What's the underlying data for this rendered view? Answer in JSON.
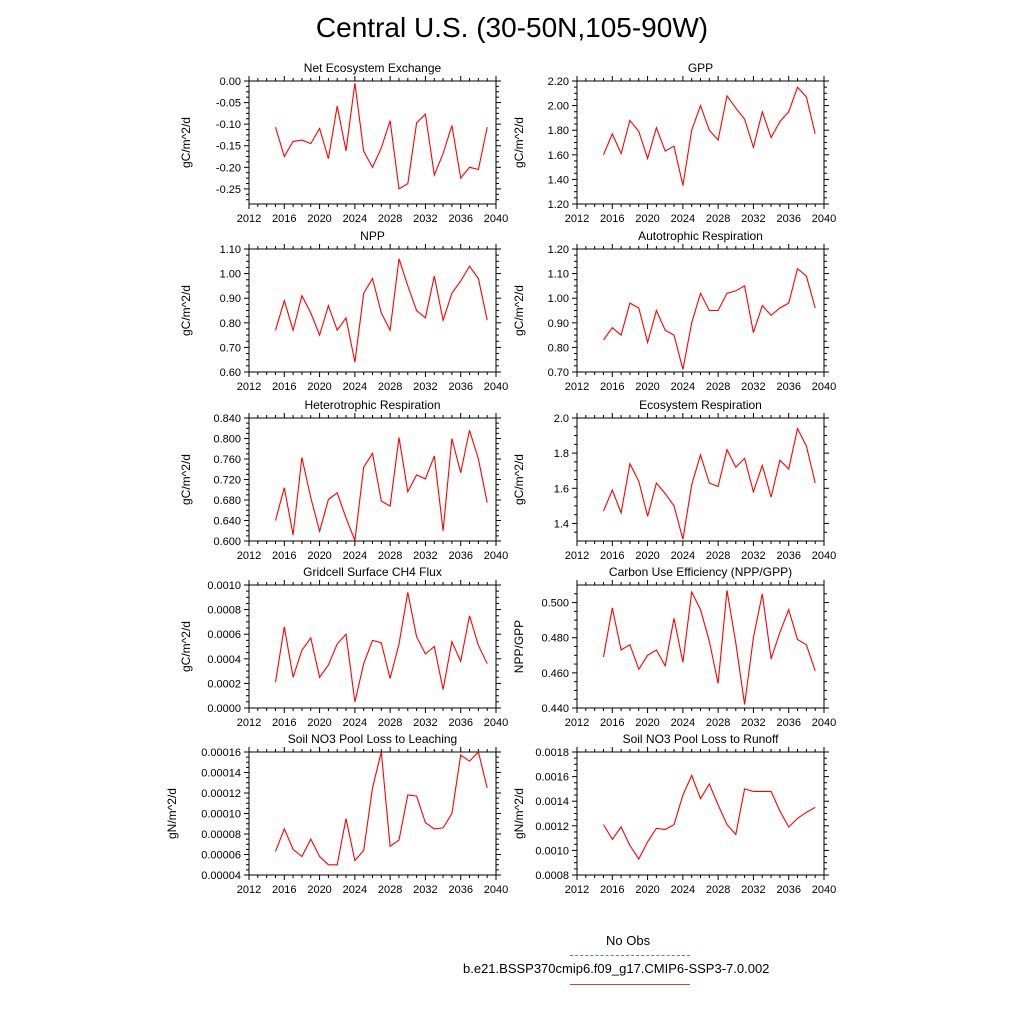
{
  "title": "Central U.S. (30-50N,105-90W)",
  "colors": {
    "model_line": "#ff0000",
    "obs_line": "#6a6ae0",
    "axis": "#000000"
  },
  "legend": {
    "obs_label": "No Obs",
    "model_label": "b.e21.BSSP370cmip6.f09_g17.CMIP6-SSP3-7.0.002"
  },
  "chart_data": [
    {
      "type": "line",
      "title": "Net Ecosystem Exchange",
      "xlabel": "",
      "ylabel": "gC/m^2/d",
      "xlim": [
        2012,
        2040
      ],
      "ylim": [
        -0.285,
        0.0
      ],
      "xticks": [
        "2012",
        "2016",
        "2020",
        "2024",
        "2028",
        "2032",
        "2036",
        "2040"
      ],
      "yticks": [
        "0.00",
        "-0.05",
        "-0.10",
        "-0.15",
        "-0.20",
        "-0.25"
      ],
      "x": [
        2015,
        2016,
        2017,
        2018,
        2019,
        2020,
        2021,
        2022,
        2023,
        2024,
        2025,
        2026,
        2027,
        2028,
        2029,
        2030,
        2031,
        2032,
        2033,
        2034,
        2035,
        2036,
        2037,
        2038,
        2039
      ],
      "values": [
        -0.107,
        -0.175,
        -0.14,
        -0.137,
        -0.145,
        -0.11,
        -0.18,
        -0.058,
        -0.162,
        -0.005,
        -0.163,
        -0.2,
        -0.155,
        -0.092,
        -0.25,
        -0.238,
        -0.097,
        -0.077,
        -0.218,
        -0.168,
        -0.103,
        -0.225,
        -0.2,
        -0.205,
        -0.107
      ]
    },
    {
      "type": "line",
      "title": "GPP",
      "xlabel": "",
      "ylabel": "gC/m^2/d",
      "xlim": [
        2012,
        2040
      ],
      "ylim": [
        1.2,
        2.2
      ],
      "xticks": [
        "2012",
        "2016",
        "2020",
        "2024",
        "2028",
        "2032",
        "2036",
        "2040"
      ],
      "yticks": [
        "2.20",
        "2.00",
        "1.80",
        "1.60",
        "1.40",
        "1.20"
      ],
      "x": [
        2015,
        2016,
        2017,
        2018,
        2019,
        2020,
        2021,
        2022,
        2023,
        2024,
        2025,
        2026,
        2027,
        2028,
        2029,
        2030,
        2031,
        2032,
        2033,
        2034,
        2035,
        2036,
        2037,
        2038,
        2039
      ],
      "values": [
        1.6,
        1.77,
        1.61,
        1.88,
        1.79,
        1.57,
        1.82,
        1.63,
        1.67,
        1.35,
        1.8,
        2.0,
        1.8,
        1.72,
        2.08,
        1.98,
        1.89,
        1.66,
        1.95,
        1.74,
        1.87,
        1.95,
        2.15,
        2.07,
        1.77
      ]
    },
    {
      "type": "line",
      "title": "NPP",
      "xlabel": "",
      "ylabel": "gC/m^2/d",
      "xlim": [
        2012,
        2040
      ],
      "ylim": [
        0.6,
        1.1
      ],
      "xticks": [
        "2012",
        "2016",
        "2020",
        "2024",
        "2028",
        "2032",
        "2036",
        "2040"
      ],
      "yticks": [
        "1.10",
        "1.00",
        "0.90",
        "0.80",
        "0.70",
        "0.60"
      ],
      "x": [
        2015,
        2016,
        2017,
        2018,
        2019,
        2020,
        2021,
        2022,
        2023,
        2024,
        2025,
        2026,
        2027,
        2028,
        2029,
        2030,
        2031,
        2032,
        2033,
        2034,
        2035,
        2036,
        2037,
        2038,
        2039
      ],
      "values": [
        0.77,
        0.89,
        0.77,
        0.91,
        0.84,
        0.75,
        0.87,
        0.77,
        0.82,
        0.64,
        0.92,
        0.98,
        0.84,
        0.77,
        1.06,
        0.95,
        0.85,
        0.82,
        0.99,
        0.81,
        0.92,
        0.97,
        1.03,
        0.98,
        0.81
      ]
    },
    {
      "type": "line",
      "title": "Autotrophic Respiration",
      "xlabel": "",
      "ylabel": "gC/m^2/d",
      "xlim": [
        2012,
        2040
      ],
      "ylim": [
        0.7,
        1.2
      ],
      "xticks": [
        "2012",
        "2016",
        "2020",
        "2024",
        "2028",
        "2032",
        "2036",
        "2040"
      ],
      "yticks": [
        "1.20",
        "1.10",
        "1.00",
        "0.90",
        "0.80",
        "0.70"
      ],
      "x": [
        2015,
        2016,
        2017,
        2018,
        2019,
        2020,
        2021,
        2022,
        2023,
        2024,
        2025,
        2026,
        2027,
        2028,
        2029,
        2030,
        2031,
        2032,
        2033,
        2034,
        2035,
        2036,
        2037,
        2038,
        2039
      ],
      "values": [
        0.83,
        0.88,
        0.85,
        0.98,
        0.96,
        0.82,
        0.95,
        0.87,
        0.85,
        0.71,
        0.9,
        1.02,
        0.95,
        0.95,
        1.02,
        1.03,
        1.05,
        0.86,
        0.97,
        0.93,
        0.96,
        0.98,
        1.12,
        1.09,
        0.96
      ]
    },
    {
      "type": "line",
      "title": "Heterotrophic Respiration",
      "xlabel": "",
      "ylabel": "gC/m^2/d",
      "xlim": [
        2012,
        2040
      ],
      "ylim": [
        0.6,
        0.84
      ],
      "xticks": [
        "2012",
        "2016",
        "2020",
        "2024",
        "2028",
        "2032",
        "2036",
        "2040"
      ],
      "yticks": [
        "0.840",
        "0.800",
        "0.760",
        "0.720",
        "0.680",
        "0.640",
        "0.600"
      ],
      "x": [
        2015,
        2016,
        2017,
        2018,
        2019,
        2020,
        2021,
        2022,
        2023,
        2024,
        2025,
        2026,
        2027,
        2028,
        2029,
        2030,
        2031,
        2032,
        2033,
        2034,
        2035,
        2036,
        2037,
        2038,
        2039
      ],
      "values": [
        0.64,
        0.704,
        0.612,
        0.763,
        0.684,
        0.619,
        0.681,
        0.694,
        0.645,
        0.601,
        0.744,
        0.771,
        0.678,
        0.668,
        0.802,
        0.696,
        0.729,
        0.721,
        0.766,
        0.62,
        0.8,
        0.733,
        0.816,
        0.76,
        0.675
      ]
    },
    {
      "type": "line",
      "title": "Ecosystem Respiration",
      "xlabel": "",
      "ylabel": "gC/m^2/d",
      "xlim": [
        2012,
        2040
      ],
      "ylim": [
        1.3,
        2.0
      ],
      "xticks": [
        "2012",
        "2016",
        "2020",
        "2024",
        "2028",
        "2032",
        "2036",
        "2040"
      ],
      "yticks": [
        "2.0",
        "1.8",
        "1.6",
        "1.4"
      ],
      "x": [
        2015,
        2016,
        2017,
        2018,
        2019,
        2020,
        2021,
        2022,
        2023,
        2024,
        2025,
        2026,
        2027,
        2028,
        2029,
        2030,
        2031,
        2032,
        2033,
        2034,
        2035,
        2036,
        2037,
        2038,
        2039
      ],
      "values": [
        1.47,
        1.59,
        1.46,
        1.74,
        1.64,
        1.44,
        1.63,
        1.57,
        1.5,
        1.31,
        1.62,
        1.79,
        1.63,
        1.61,
        1.82,
        1.72,
        1.77,
        1.58,
        1.73,
        1.55,
        1.76,
        1.71,
        1.94,
        1.84,
        1.63
      ]
    },
    {
      "type": "line",
      "title": "Gridcell Surface CH4 Flux",
      "xlabel": "",
      "ylabel": "gC/m^2/d",
      "xlim": [
        2012,
        2040
      ],
      "ylim": [
        0.0,
        0.001
      ],
      "xticks": [
        "2012",
        "2016",
        "2020",
        "2024",
        "2028",
        "2032",
        "2036",
        "2040"
      ],
      "yticks": [
        "0.0010",
        "0.0008",
        "0.0006",
        "0.0004",
        "0.0002",
        "0.0000"
      ],
      "x": [
        2015,
        2016,
        2017,
        2018,
        2019,
        2020,
        2021,
        2022,
        2023,
        2024,
        2025,
        2026,
        2027,
        2028,
        2029,
        2030,
        2031,
        2032,
        2033,
        2034,
        2035,
        2036,
        2037,
        2038,
        2039
      ],
      "values": [
        0.00021,
        0.00066,
        0.00025,
        0.00047,
        0.00057,
        0.00025,
        0.00035,
        0.00052,
        0.0006,
        5e-05,
        0.00036,
        0.00055,
        0.00053,
        0.00024,
        0.00052,
        0.00094,
        0.00058,
        0.00044,
        0.0005,
        0.00015,
        0.00054,
        0.00038,
        0.00075,
        0.00051,
        0.00036
      ]
    },
    {
      "type": "line",
      "title": "Carbon Use Efficiency (NPP/GPP)",
      "xlabel": "",
      "ylabel": "NPP/GPP",
      "xlim": [
        2012,
        2040
      ],
      "ylim": [
        0.44,
        0.51
      ],
      "xticks": [
        "2012",
        "2016",
        "2020",
        "2024",
        "2028",
        "2032",
        "2036",
        "2040"
      ],
      "yticks": [
        "0.500",
        "0.480",
        "0.460",
        "0.440"
      ],
      "x": [
        2015,
        2016,
        2017,
        2018,
        2019,
        2020,
        2021,
        2022,
        2023,
        2024,
        2025,
        2026,
        2027,
        2028,
        2029,
        2030,
        2031,
        2032,
        2033,
        2034,
        2035,
        2036,
        2037,
        2038,
        2039
      ],
      "values": [
        0.469,
        0.497,
        0.473,
        0.476,
        0.462,
        0.47,
        0.473,
        0.464,
        0.491,
        0.466,
        0.506,
        0.496,
        0.478,
        0.454,
        0.507,
        0.477,
        0.442,
        0.48,
        0.505,
        0.468,
        0.483,
        0.496,
        0.479,
        0.476,
        0.461
      ]
    },
    {
      "type": "line",
      "title": "Soil NO3 Pool Loss to Leaching",
      "xlabel": "",
      "ylabel": "gN/m^2/d",
      "xlim": [
        2012,
        2040
      ],
      "ylim": [
        4e-05,
        0.00016
      ],
      "xticks": [
        "2012",
        "2016",
        "2020",
        "2024",
        "2028",
        "2032",
        "2036",
        "2040"
      ],
      "yticks": [
        "0.00016",
        "0.00014",
        "0.00012",
        "0.00010",
        "0.00008",
        "0.00006",
        "0.00004"
      ],
      "x": [
        2015,
        2016,
        2017,
        2018,
        2019,
        2020,
        2021,
        2022,
        2023,
        2024,
        2025,
        2026,
        2027,
        2028,
        2029,
        2030,
        2031,
        2032,
        2033,
        2034,
        2035,
        2036,
        2037,
        2038,
        2039
      ],
      "values": [
        6.3e-05,
        8.5e-05,
        6.5e-05,
        5.8e-05,
        7.5e-05,
        5.8e-05,
        5e-05,
        5e-05,
        9.5e-05,
        5.4e-05,
        6.4e-05,
        0.000125,
        0.00016,
        6.8e-05,
        7.4e-05,
        0.000118,
        0.000117,
        9.1e-05,
        8.5e-05,
        8.6e-05,
        0.0001,
        0.000157,
        0.000151,
        0.00016,
        0.000125
      ]
    },
    {
      "type": "line",
      "title": "Soil NO3 Pool Loss to Runoff",
      "xlabel": "",
      "ylabel": "gN/m^2/d",
      "xlim": [
        2012,
        2040
      ],
      "ylim": [
        0.0008,
        0.0018
      ],
      "xticks": [
        "2012",
        "2016",
        "2020",
        "2024",
        "2028",
        "2032",
        "2036",
        "2040"
      ],
      "yticks": [
        "0.0018",
        "0.0016",
        "0.0014",
        "0.0012",
        "0.0010",
        "0.0008"
      ],
      "x": [
        2015,
        2016,
        2017,
        2018,
        2019,
        2020,
        2021,
        2022,
        2023,
        2024,
        2025,
        2026,
        2027,
        2028,
        2029,
        2030,
        2031,
        2032,
        2033,
        2034,
        2035,
        2036,
        2037,
        2038,
        2039
      ],
      "values": [
        0.00121,
        0.00109,
        0.00119,
        0.00104,
        0.00093,
        0.00107,
        0.00118,
        0.00117,
        0.00121,
        0.00145,
        0.00161,
        0.00142,
        0.00154,
        0.00137,
        0.00121,
        0.00113,
        0.0015,
        0.00148,
        0.00148,
        0.00148,
        0.00132,
        0.00119,
        0.00126,
        0.00131,
        0.00135
      ]
    }
  ]
}
